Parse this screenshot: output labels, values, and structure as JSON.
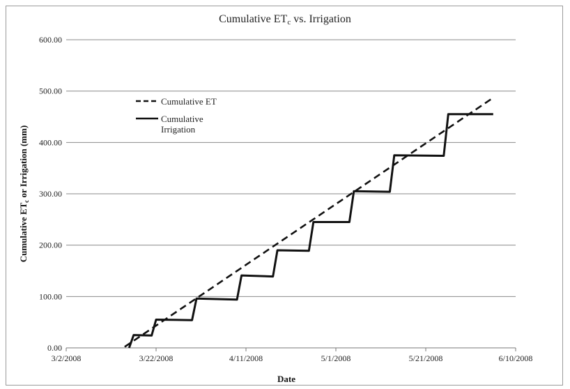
{
  "chart_data": {
    "type": "line",
    "title": "Cumulative ETc vs. Irrigation",
    "title_main": "Cumulative ET",
    "title_sub": "c",
    "title_tail": " vs. Irrigation",
    "xlabel": "Date",
    "ylabel_main": "Cumulative ET",
    "ylabel_sub": "c",
    "ylabel_tail": " or Irrigation (mm)",
    "x_type": "date",
    "xlim": [
      "2008-03-02",
      "2008-06-10"
    ],
    "ylim": [
      0,
      600
    ],
    "x_ticks": [
      "3/2/2008",
      "3/22/2008",
      "4/11/2008",
      "5/1/2008",
      "5/21/2008",
      "6/10/2008"
    ],
    "y_ticks": [
      "0.00",
      "100.00",
      "200.00",
      "300.00",
      "400.00",
      "500.00",
      "600.00"
    ],
    "grid": "horizontal",
    "legend_position": "upper-left",
    "series": [
      {
        "name": "Cumulative ET",
        "style": "dashed",
        "color": "#111111",
        "points": [
          [
            "2008-03-15",
            2
          ],
          [
            "2008-06-05",
            487
          ]
        ]
      },
      {
        "name": "Cumulative Irrigation",
        "style": "solid",
        "color": "#111111",
        "points": [
          [
            "2008-03-16",
            0
          ],
          [
            "2008-03-17",
            25
          ],
          [
            "2008-03-21",
            24
          ],
          [
            "2008-03-22",
            55
          ],
          [
            "2008-03-30",
            54
          ],
          [
            "2008-03-31",
            96
          ],
          [
            "2008-04-09",
            94
          ],
          [
            "2008-04-10",
            141
          ],
          [
            "2008-04-17",
            139
          ],
          [
            "2008-04-18",
            190
          ],
          [
            "2008-04-25",
            189
          ],
          [
            "2008-04-26",
            245
          ],
          [
            "2008-05-04",
            245
          ],
          [
            "2008-05-05",
            305
          ],
          [
            "2008-05-13",
            304
          ],
          [
            "2008-05-14",
            375
          ],
          [
            "2008-05-25",
            374
          ],
          [
            "2008-05-26",
            455
          ],
          [
            "2008-06-05",
            455
          ]
        ]
      }
    ]
  },
  "legend": {
    "et_label": "Cumulative ET",
    "irrigation_label": "Cumulative Irrigation"
  }
}
